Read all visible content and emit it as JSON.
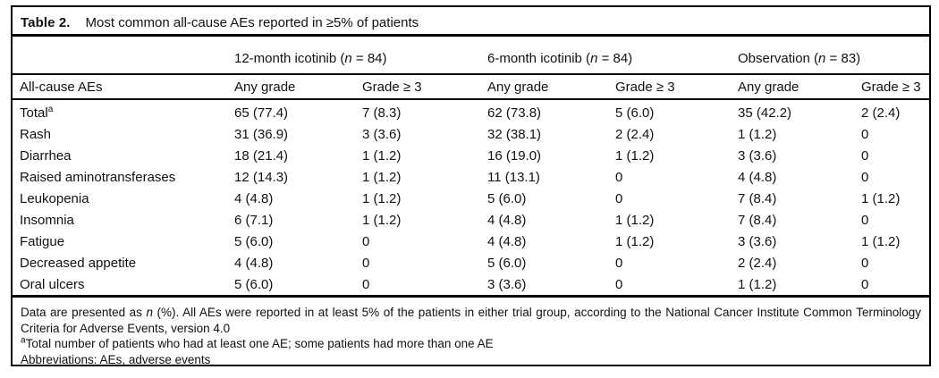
{
  "colors": {
    "background": "#ffffff",
    "text": "#121212",
    "rule": "#000000"
  },
  "table": {
    "label": "Table 2.",
    "title": "Most common all-cause AEs reported in ≥5% of patients",
    "group_headers": [
      {
        "parts": [
          {
            "t": "12-month icotinib ("
          },
          {
            "t": "n",
            "i": true
          },
          {
            "t": " = 84)"
          }
        ]
      },
      {
        "parts": [
          {
            "t": "6-month icotinib ("
          },
          {
            "t": "n",
            "i": true
          },
          {
            "t": " = 84)"
          }
        ]
      },
      {
        "parts": [
          {
            "t": "Observation ("
          },
          {
            "t": "n",
            "i": true
          },
          {
            "t": " = 83)"
          }
        ]
      }
    ],
    "column_headers": [
      "All-cause AEs",
      "Any grade",
      "Grade ≥ 3",
      "Any grade",
      "Grade ≥ 3",
      "Any grade",
      "Grade ≥ 3"
    ],
    "rows": [
      {
        "label": "Total",
        "sup": "a",
        "values": [
          "65 (77.4)",
          "7 (8.3)",
          "62 (73.8)",
          "5 (6.0)",
          "35 (42.2)",
          "2 (2.4)"
        ]
      },
      {
        "label": "Rash",
        "values": [
          "31 (36.9)",
          "3 (3.6)",
          "32 (38.1)",
          "2 (2.4)",
          "1 (1.2)",
          "0"
        ]
      },
      {
        "label": "Diarrhea",
        "values": [
          "18 (21.4)",
          "1 (1.2)",
          "16 (19.0)",
          "1 (1.2)",
          "3 (3.6)",
          "0"
        ]
      },
      {
        "label": "Raised aminotransferases",
        "values": [
          "12 (14.3)",
          "1 (1.2)",
          "11 (13.1)",
          "0",
          "4 (4.8)",
          "0"
        ]
      },
      {
        "label": "Leukopenia",
        "values": [
          "4 (4.8)",
          "1 (1.2)",
          "5 (6.0)",
          "0",
          "7 (8.4)",
          "1 (1.2)"
        ]
      },
      {
        "label": "Insomnia",
        "values": [
          "6 (7.1)",
          "1 (1.2)",
          "4 (4.8)",
          "1 (1.2)",
          "7 (8.4)",
          "0"
        ]
      },
      {
        "label": "Fatigue",
        "values": [
          "5 (6.0)",
          "0",
          "4 (4.8)",
          "1 (1.2)",
          "3 (3.6)",
          "1 (1.2)"
        ]
      },
      {
        "label": "Decreased appetite",
        "values": [
          "4 (4.8)",
          "0",
          "5 (6.0)",
          "0",
          "2 (2.4)",
          "0"
        ]
      },
      {
        "label": "Oral ulcers",
        "values": [
          "5 (6.0)",
          "0",
          "3 (3.6)",
          "0",
          "1 (1.2)",
          "0"
        ]
      }
    ],
    "footnotes": [
      {
        "justify": true,
        "parts": [
          {
            "t": "Data are presented as "
          },
          {
            "t": "n",
            "i": true
          },
          {
            "t": " (%). All AEs were reported in at least 5% of the patients in either trial group, according to the National Cancer Institute Common Terminology Criteria for Adverse Events, version 4.0"
          }
        ]
      },
      {
        "parts": [
          {
            "t": "a",
            "sup": true
          },
          {
            "t": "Total number of patients who had at least one AE; some patients had more than one AE"
          }
        ]
      },
      {
        "parts": [
          {
            "t": "Abbreviations: AEs, adverse events"
          }
        ]
      }
    ]
  }
}
